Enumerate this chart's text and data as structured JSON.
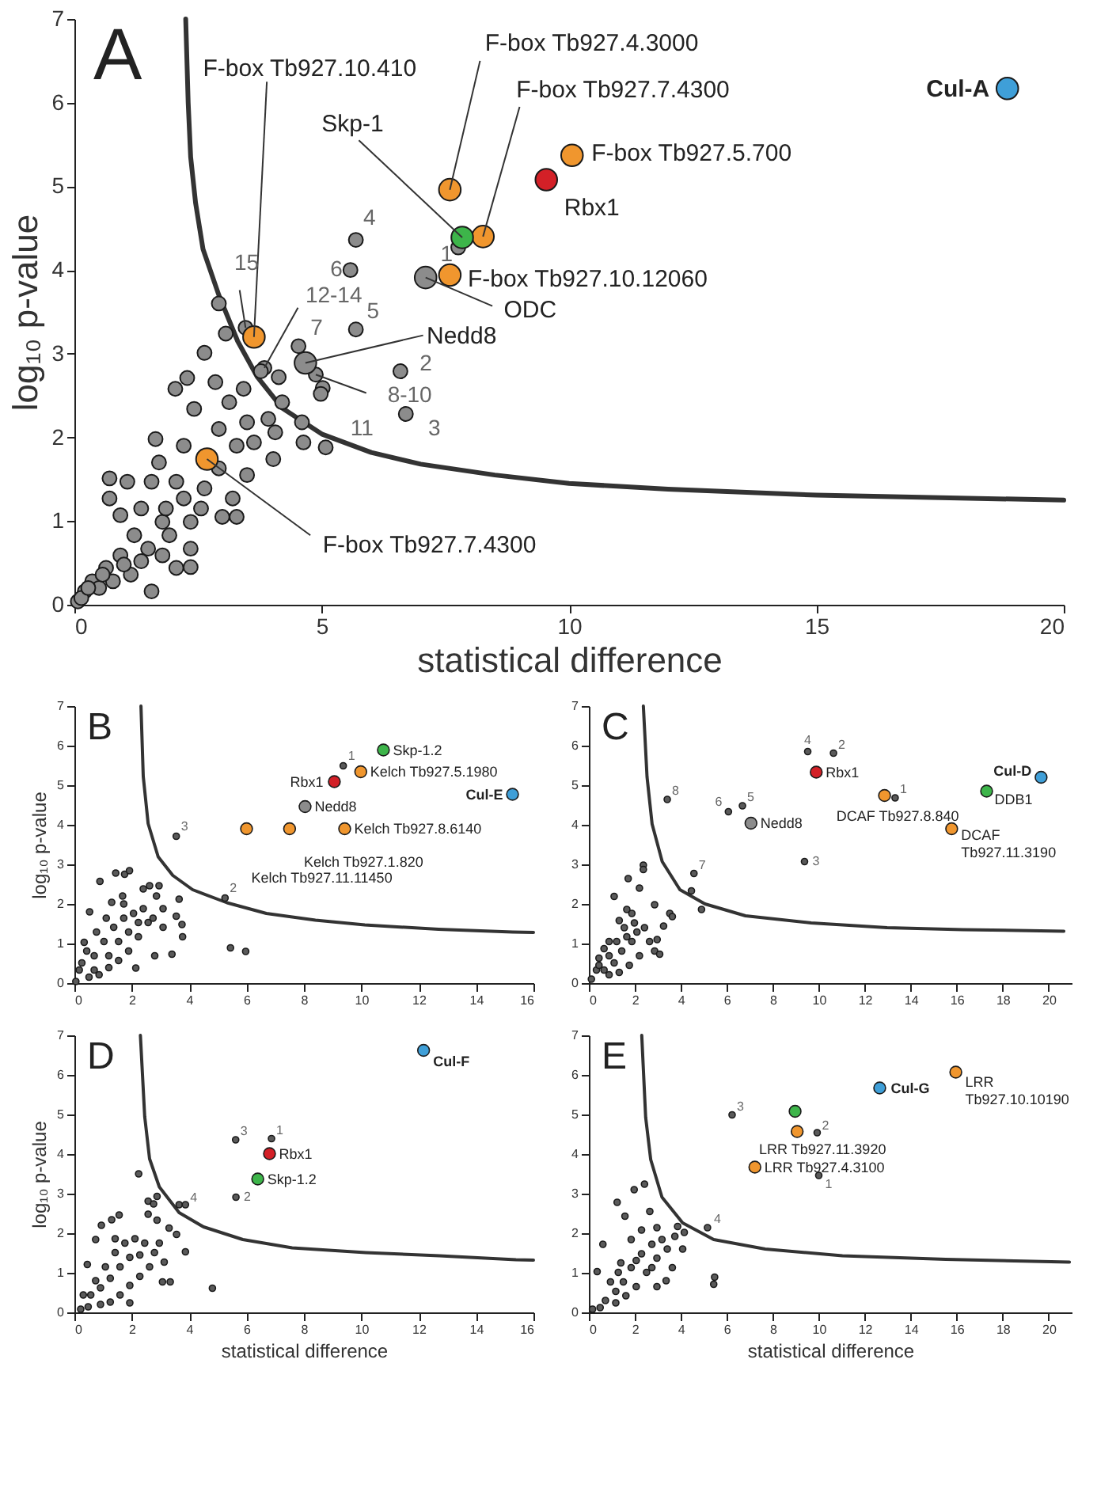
{
  "chart_data": [
    {
      "type": "scatter",
      "title": "A",
      "xlabel": "statistical difference",
      "ylabel": "log₁₀ p-value",
      "marker": "circle",
      "grid": false,
      "xlim": [
        0,
        20
      ],
      "xticks": [
        0,
        5,
        10,
        15,
        20
      ],
      "ylim": [
        0,
        7
      ],
      "yticks": [
        0,
        1,
        2,
        3,
        4,
        5,
        6,
        7
      ],
      "series": [
        {
          "color": "#8c8c8c",
          "x": [
            7.76,
            5.69,
            5.58,
            5.69,
            4.53,
            6.59,
            6.7,
            4.88,
            5.02,
            4.98,
            5.08,
            3.84,
            4.13,
            3.77,
            3.46,
            2.92,
            3.06,
            2.63,
            2.04,
            2.28,
            2.85,
            2.42,
            3.13,
            3.42,
            3.49,
            3.92,
            4.06,
            4.6,
            4.63,
            4.02,
            3.28,
            2.92,
            2.21,
            1.64,
            1.71,
            2.06,
            2.92,
            3.49,
            3.2,
            2.99,
            3.28,
            2.21,
            2.35,
            1.56,
            1.07,
            0.71,
            0.71,
            0.93,
            1.35,
            1.78,
            2.06,
            2.35,
            1.56,
            1.21,
            0.93,
            0.64,
            0.36,
            0.21,
            0.07,
            0.5,
            0.78,
            1.14,
            1.49,
            1.92,
            2.35,
            2.63,
            0.14,
            0.28,
            0.57,
            1.0,
            1.35,
            1.78,
            1.85,
            2.56,
            3.63,
            4.2
          ],
          "values": [
            4.27,
            4.36,
            4.0,
            3.29,
            3.09,
            2.79,
            2.28,
            2.75,
            2.59,
            2.52,
            1.88,
            2.83,
            2.72,
            2.79,
            3.31,
            3.6,
            3.24,
            3.01,
            2.58,
            2.71,
            2.66,
            2.34,
            2.42,
            2.58,
            2.18,
            2.22,
            2.06,
            2.18,
            1.94,
            1.74,
            1.9,
            2.1,
            1.9,
            1.98,
            1.7,
            1.47,
            1.63,
            1.55,
            1.27,
            1.05,
            1.05,
            1.27,
            0.99,
            1.47,
            1.47,
            1.51,
            1.27,
            1.07,
            1.15,
            0.99,
            0.44,
            0.45,
            0.16,
            0.83,
            0.59,
            0.44,
            0.28,
            0.16,
            0.04,
            0.2,
            0.28,
            0.36,
            0.67,
            0.83,
            0.67,
            1.39,
            0.08,
            0.2,
            0.36,
            0.48,
            0.52,
            0.59,
            1.15,
            1.15,
            1.94,
            2.42
          ]
        },
        {
          "x": [
            18.86,
            10.06,
            9.54,
            7.59,
            8.26,
            7.84,
            7.59,
            7.1,
            4.67,
            3.63,
            2.68
          ],
          "values": [
            6.17,
            5.37,
            5.08,
            4.96,
            4.4,
            4.39,
            3.94,
            3.91,
            2.89,
            3.2,
            1.74
          ],
          "colors": [
            "#3f9fd8",
            "#f0962e",
            "#d32027",
            "#f0962e",
            "#f0962e",
            "#3db54a",
            "#f0962e",
            "#8c8c8c",
            "#8c8c8c",
            "#f0962e",
            "#f0962e"
          ]
        },
        {
          "type": "line",
          "marker": "none",
          "color": "#333333",
          "x": [
            2.25,
            2.3,
            2.35,
            2.45,
            2.6,
            2.92,
            3.3,
            3.7,
            4.2,
            5,
            6,
            7,
            8.5,
            10,
            12,
            15,
            20
          ],
          "values": [
            7,
            6,
            5.35,
            4.8,
            4.25,
            3.7,
            3.15,
            2.72,
            2.35,
            2.04,
            1.82,
            1.68,
            1.55,
            1.45,
            1.38,
            1.31,
            1.25
          ]
        }
      ],
      "annotations": [
        {
          "text": "Cul-A",
          "x": 18.86,
          "y": 6.17
        },
        {
          "text": "F-box Tb927.5.700",
          "x": 10.06,
          "y": 5.37
        },
        {
          "text": "Rbx1",
          "x": 9.54,
          "y": 5.08
        },
        {
          "text": "F-box Tb927.4.3000",
          "x": 7.59,
          "y": 4.96
        },
        {
          "text": "F-box Tb927.7.4300",
          "x": 8.26,
          "y": 4.4
        },
        {
          "text": "Skp-1",
          "x": 7.84,
          "y": 4.39
        },
        {
          "text": "F-box Tb927.10.12060",
          "x": 7.59,
          "y": 3.94
        },
        {
          "text": "ODC",
          "x": 7.1,
          "y": 3.91
        },
        {
          "text": "Nedd8",
          "x": 4.67,
          "y": 2.89
        },
        {
          "text": "F-box Tb927.10.410",
          "x": 3.63,
          "y": 3.2
        },
        {
          "text": "F-box Tb927.7.4300",
          "x": 2.68,
          "y": 1.74
        },
        {
          "text": "1",
          "x": 7.76,
          "y": 4.27
        },
        {
          "text": "4",
          "x": 5.69,
          "y": 4.36
        },
        {
          "text": "6",
          "x": 5.58,
          "y": 4.0
        },
        {
          "text": "5",
          "x": 5.69,
          "y": 3.29
        },
        {
          "text": "7",
          "x": 4.53,
          "y": 3.09
        },
        {
          "text": "2",
          "x": 6.59,
          "y": 2.79
        },
        {
          "text": "3",
          "x": 6.7,
          "y": 2.28
        },
        {
          "text": "8-10",
          "x": 4.88,
          "y": 2.75
        },
        {
          "text": "11",
          "x": 5.08,
          "y": 1.88
        },
        {
          "text": "12-14",
          "x": 3.84,
          "y": 2.83
        },
        {
          "text": "15",
          "x": 3.46,
          "y": 3.31
        }
      ]
    },
    {
      "type": "scatter",
      "title": "B",
      "ylabel": "log₁₀ p-value",
      "marker": "circle",
      "grid": false,
      "xlim": [
        0,
        16
      ],
      "xticks": [
        0,
        2,
        4,
        6,
        8,
        10,
        12,
        14,
        16
      ],
      "ylim": [
        0,
        7
      ],
      "yticks": [
        0,
        1,
        2,
        3,
        4,
        5,
        6,
        7
      ],
      "series": [
        {
          "color": "#5a5a5a",
          "x": [
            9.37,
            3.55,
            5.25,
            5.44,
            5.97,
            0.89,
            1.44,
            1.75,
            1.92,
            0.53,
            1.3,
            1.68,
            2.4,
            2.62,
            2.95,
            2.86,
            3.65,
            3.55,
            3.75,
            3.77,
            3.4,
            2.8,
            2.14,
            0.34,
            0.17,
            0.05,
            0.69,
            1.03,
            1.37,
            1.72,
            2.06,
            2.4,
            2.57,
            2.23,
            1.89,
            1.54,
            1.2,
            0.86,
            0.51,
            0.69,
            1.2,
            1.54,
            1.89,
            2.23,
            2.74,
            3.09,
            3.09,
            1.11,
            0.77,
            0.43,
            0.26,
            1.72
          ],
          "values": [
            5.49,
            3.71,
            2.15,
            0.89,
            0.8,
            2.57,
            2.78,
            2.75,
            2.84,
            1.8,
            2.04,
            2.2,
            2.38,
            2.46,
            2.46,
            2.2,
            2.12,
            1.69,
            1.48,
            1.17,
            0.73,
            0.69,
            0.38,
            1.03,
            0.33,
            0.04,
            0.69,
            1.05,
            1.41,
            1.64,
            1.76,
            1.88,
            1.53,
            1.17,
            0.81,
            0.57,
            0.39,
            0.21,
            0.15,
            0.33,
            0.69,
            1.05,
            1.29,
            1.53,
            1.64,
            1.41,
            1.88,
            1.64,
            1.29,
            0.81,
            0.51,
            2.0
          ]
        },
        {
          "x": [
            10.77,
            9.98,
            9.06,
            15.27,
            8.04,
            9.42,
            7.5,
            6.0
          ],
          "values": [
            5.89,
            5.34,
            5.09,
            4.77,
            4.46,
            3.9,
            3.9,
            3.9
          ],
          "colors": [
            "#3db54a",
            "#f0962e",
            "#d32027",
            "#3f9fd8",
            "#8c8c8c",
            "#f0962e",
            "#f0962e",
            "#f0962e"
          ]
        },
        {
          "type": "line",
          "marker": "none",
          "color": "#333333",
          "x": [
            2.32,
            2.4,
            2.57,
            2.92,
            3.43,
            4.12,
            5.32,
            6.69,
            8.4,
            10.12,
            12.69,
            15.27,
            16
          ],
          "values": [
            7,
            5.22,
            4.03,
            3.19,
            2.72,
            2.36,
            2.03,
            1.76,
            1.59,
            1.47,
            1.36,
            1.29,
            1.28
          ]
        }
      ],
      "annotations": [
        {
          "text": "Skp-1.2",
          "x": 10.77,
          "y": 5.89
        },
        {
          "text": "Kelch Tb927.5.1980",
          "x": 9.98,
          "y": 5.34
        },
        {
          "text": "1",
          "x": 9.37,
          "y": 5.49
        },
        {
          "text": "Rbx1",
          "x": 9.06,
          "y": 5.09
        },
        {
          "text": "Cul-E",
          "x": 15.27,
          "y": 4.77
        },
        {
          "text": "Nedd8",
          "x": 8.04,
          "y": 4.46
        },
        {
          "text": "Kelch Tb927.8.6140",
          "x": 9.42,
          "y": 3.9
        },
        {
          "text": "Kelch Tb927.1.820",
          "x": 7.5,
          "y": 3.9
        },
        {
          "text": "Kelch Tb927.11.11450",
          "x": 6.0,
          "y": 3.9
        },
        {
          "text": "3",
          "x": 3.55,
          "y": 3.71
        },
        {
          "text": "2",
          "x": 5.25,
          "y": 2.15
        }
      ]
    },
    {
      "type": "scatter",
      "title": "C",
      "marker": "circle",
      "grid": false,
      "xlim": [
        0,
        21
      ],
      "xticks": [
        0,
        2,
        4,
        6,
        8,
        10,
        12,
        14,
        16,
        18,
        20
      ],
      "ylim": [
        0,
        7
      ],
      "yticks": [
        0,
        1,
        2,
        3,
        4,
        5,
        6,
        7
      ],
      "series": [
        {
          "color": "#5a5a5a",
          "x": [
            9.52,
            10.64,
            13.32,
            3.41,
            6.07,
            6.68,
            9.38,
            4.57,
            4.46,
            4.9,
            2.37,
            2.37,
            1.71,
            2.2,
            1.1,
            2.86,
            3.52,
            3.63,
            3.25,
            1.65,
            2.97,
            2.86,
            3.08,
            0.33,
            0.11,
            0.44,
            0.88,
            1.21,
            1.54,
            1.98,
            2.42,
            2.64,
            2.2,
            1.76,
            1.32,
            0.88,
            0.66,
            1.1,
            1.43,
            1.87,
            0.88,
            0.66,
            0.44,
            2.09,
            1.65,
            1.32,
            1.87
          ],
          "values": [
            5.85,
            5.81,
            4.68,
            4.64,
            4.33,
            4.48,
            3.07,
            2.77,
            2.33,
            1.86,
            2.98,
            2.87,
            2.64,
            2.4,
            2.19,
            1.98,
            1.76,
            1.68,
            1.44,
            1.86,
            1.1,
            0.81,
            0.73,
            0.33,
            0.1,
            0.45,
            0.69,
            1.05,
            1.4,
            1.52,
            1.4,
            1.05,
            0.69,
            0.45,
            0.27,
            0.21,
            0.33,
            0.51,
            0.81,
            1.05,
            1.05,
            0.87,
            0.63,
            1.29,
            1.17,
            1.58,
            1.76
          ]
        },
        {
          "x": [
            19.67,
            17.3,
            9.89,
            12.86,
            15.78,
            7.05
          ],
          "values": [
            5.2,
            4.85,
            5.33,
            4.74,
            3.9,
            4.04
          ],
          "colors": [
            "#3f9fd8",
            "#3db54a",
            "#d32027",
            "#f0962e",
            "#f0962e",
            "#8c8c8c"
          ]
        },
        {
          "type": "line",
          "marker": "none",
          "color": "#333333",
          "x": [
            2.37,
            2.53,
            2.75,
            3.19,
            3.96,
            5.05,
            6.81,
            9.67,
            12.97,
            16.26,
            20.66
          ],
          "values": [
            7,
            5.21,
            4.02,
            3.07,
            2.36,
            2.0,
            1.7,
            1.52,
            1.4,
            1.35,
            1.31
          ]
        }
      ],
      "annotations": [
        {
          "text": "Cul-D",
          "x": 19.67,
          "y": 5.2
        },
        {
          "text": "DDB1",
          "x": 17.3,
          "y": 4.85
        },
        {
          "text": "Rbx1",
          "x": 9.89,
          "y": 5.33
        },
        {
          "text": "DCAF Tb927.8.840",
          "x": 12.86,
          "y": 4.74
        },
        {
          "text": "DCAF Tb927.11.3190",
          "x": 15.78,
          "y": 3.9
        },
        {
          "text": "1",
          "x": 13.32,
          "y": 4.68
        },
        {
          "text": "4",
          "x": 9.52,
          "y": 5.85
        },
        {
          "text": "2",
          "x": 10.64,
          "y": 5.81
        },
        {
          "text": "8",
          "x": 3.41,
          "y": 4.64
        },
        {
          "text": "6",
          "x": 6.07,
          "y": 4.33
        },
        {
          "text": "5",
          "x": 6.68,
          "y": 4.48
        },
        {
          "text": "Nedd8",
          "x": 7.05,
          "y": 4.04
        },
        {
          "text": "3",
          "x": 9.38,
          "y": 3.07
        },
        {
          "text": "7",
          "x": 4.57,
          "y": 2.77
        }
      ]
    },
    {
      "type": "scatter",
      "title": "D",
      "xlabel": "statistical difference",
      "ylabel": "log₁₀ p-value",
      "marker": "circle",
      "grid": false,
      "xlim": [
        0,
        16
      ],
      "xticks": [
        0,
        2,
        4,
        6,
        8,
        10,
        12,
        14,
        16
      ],
      "ylim": [
        0,
        7
      ],
      "yticks": [
        0,
        1,
        2,
        3,
        4,
        5,
        6,
        7
      ],
      "series": [
        {
          "color": "#5a5a5a",
          "x": [
            5.62,
            6.87,
            5.63,
            3.65,
            3.87,
            4.81,
            2.24,
            2.57,
            2.88,
            2.76,
            2.57,
            2.88,
            1.56,
            1.3,
            0.94,
            0.74,
            0.45,
            3.3,
            3.56,
            3.87,
            3.07,
            3.34,
            1.93,
            0.74,
            1.08,
            1.42,
            1.76,
            2.11,
            2.45,
            2.79,
            2.62,
            2.28,
            1.93,
            1.59,
            1.25,
            0.91,
            0.48,
            0.22,
            0.57,
            0.91,
            1.25,
            1.59,
            1.93,
            2.28,
            3.13,
            2.96,
            1.42,
            0.31
          ],
          "values": [
            4.36,
            4.39,
            2.91,
            2.72,
            2.72,
            0.61,
            3.5,
            2.81,
            2.93,
            2.74,
            2.48,
            2.33,
            2.46,
            2.34,
            2.2,
            1.84,
            1.21,
            2.13,
            1.97,
            1.53,
            0.77,
            0.77,
            0.24,
            0.8,
            1.15,
            1.51,
            1.75,
            1.86,
            1.75,
            1.51,
            1.15,
            0.91,
            0.68,
            0.44,
            0.26,
            0.2,
            0.14,
            0.08,
            0.44,
            0.62,
            0.86,
            1.15,
            1.39,
            1.45,
            1.27,
            1.75,
            1.86,
            0.44
          ]
        },
        {
          "x": [
            12.17,
            6.8,
            6.39
          ],
          "values": [
            6.62,
            4.01,
            3.37
          ],
          "colors": [
            "#3f9fd8",
            "#d32027",
            "#3db54a"
          ]
        },
        {
          "type": "line",
          "marker": "none",
          "color": "#333333",
          "x": [
            2.3,
            2.45,
            2.62,
            2.96,
            3.65,
            4.5,
            5.87,
            7.59,
            10.15,
            12.72,
            15.39,
            16
          ],
          "values": [
            7,
            4.95,
            3.88,
            3.17,
            2.52,
            2.16,
            1.84,
            1.63,
            1.51,
            1.43,
            1.33,
            1.32
          ]
        }
      ],
      "annotations": [
        {
          "text": "Cul-F",
          "x": 12.17,
          "y": 6.62
        },
        {
          "text": "3",
          "x": 5.62,
          "y": 4.36
        },
        {
          "text": "1",
          "x": 6.87,
          "y": 4.39
        },
        {
          "text": "Rbx1",
          "x": 6.8,
          "y": 4.01
        },
        {
          "text": "Skp-1.2",
          "x": 6.39,
          "y": 3.37
        },
        {
          "text": "2",
          "x": 5.63,
          "y": 2.91
        },
        {
          "text": "4",
          "x": 3.87,
          "y": 2.72
        }
      ]
    },
    {
      "type": "scatter",
      "title": "E",
      "xlabel": "statistical difference",
      "marker": "circle",
      "grid": false,
      "xlim": [
        0,
        21
      ],
      "xticks": [
        0,
        2,
        4,
        6,
        8,
        10,
        12,
        14,
        16,
        18,
        20
      ],
      "ylim": [
        0,
        7
      ],
      "yticks": [
        0,
        1,
        2,
        3,
        4,
        5,
        6,
        7
      ],
      "series": [
        {
          "color": "#5a5a5a",
          "x": [
            9.93,
            6.23,
            10.0,
            5.16,
            5.47,
            5.43,
            2.42,
            1.97,
            1.23,
            2.65,
            1.57,
            3.86,
            4.15,
            3.74,
            4.08,
            2.96,
            0.36,
            0.61,
            2.96,
            3.63,
            3.36,
            0.16,
            0.72,
            1.17,
            1.5,
            1.84,
            2.29,
            2.74,
            3.18,
            2.96,
            2.51,
            2.06,
            1.61,
            1.17,
            0.49,
            0.94,
            1.39,
            1.84,
            2.29,
            1.28,
            2.06,
            3.41,
            2.74
          ],
          "values": [
            4.54,
            4.99,
            3.46,
            2.14,
            0.89,
            0.71,
            3.24,
            3.1,
            2.78,
            2.55,
            2.43,
            2.17,
            2.02,
            1.92,
            1.6,
            2.14,
            1.03,
            1.72,
            0.65,
            1.13,
            0.8,
            0.08,
            0.3,
            0.53,
            0.77,
            1.13,
            1.48,
            1.72,
            1.84,
            1.37,
            1.01,
            0.65,
            0.42,
            0.24,
            0.12,
            0.77,
            1.25,
            1.84,
            2.08,
            1.01,
            1.31,
            1.6,
            1.13
          ]
        },
        {
          "x": [
            15.96,
            12.65,
            8.97,
            9.06,
            7.22
          ],
          "values": [
            6.07,
            5.67,
            5.08,
            4.57,
            3.67
          ],
          "colors": [
            "#f0962e",
            "#3f9fd8",
            "#3db54a",
            "#f0962e",
            "#f0962e"
          ]
        },
        {
          "type": "line",
          "marker": "none",
          "color": "#333333",
          "x": [
            2.3,
            2.47,
            2.69,
            3.18,
            4.08,
            5.43,
            7.67,
            11.03,
            15.52,
            20.9
          ],
          "values": [
            7,
            4.93,
            3.86,
            2.91,
            2.26,
            1.84,
            1.6,
            1.43,
            1.34,
            1.27
          ]
        }
      ],
      "annotations": [
        {
          "text": "LRR Tb927.10.10190",
          "x": 15.96,
          "y": 6.07
        },
        {
          "text": "Cul-G",
          "x": 12.65,
          "y": 5.67
        },
        {
          "text": "LRR Tb927.11.3920",
          "x": 9.06,
          "y": 4.57
        },
        {
          "text": "2",
          "x": 9.93,
          "y": 4.54
        },
        {
          "text": "3",
          "x": 6.23,
          "y": 4.99
        },
        {
          "text": "LRR Tb927.4.3100",
          "x": 7.22,
          "y": 3.67
        },
        {
          "text": "1",
          "x": 10.0,
          "y": 3.46
        },
        {
          "text": "4",
          "x": 5.16,
          "y": 2.14
        }
      ]
    }
  ]
}
